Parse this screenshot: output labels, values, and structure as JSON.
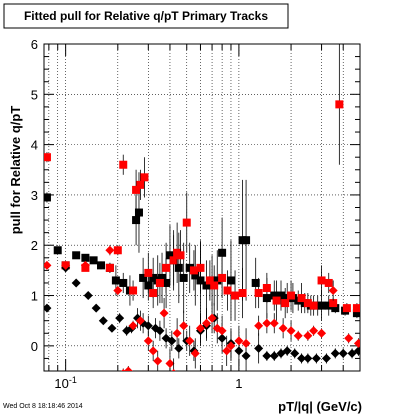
{
  "chart_data": {
    "type": "scatter",
    "title": "Fitted pull for Relative q/pT  Primary Tracks",
    "xlabel": "pT/|q| (GeV/c)",
    "ylabel": "pull for Relative q/pT",
    "x_scale": "log",
    "xlim": [
      0.075,
      5.0
    ],
    "ylim": [
      -0.5,
      6.0
    ],
    "x_tick_labels": [
      "10^-1",
      "1"
    ],
    "y_tick_labels": [
      "0",
      "1",
      "2",
      "3",
      "4",
      "5",
      "6"
    ],
    "grid": true,
    "timestamp": "Wed Oct  8 18:18:46 2014",
    "colors": {
      "black": "#000000",
      "red": "#ff0000"
    },
    "series": [
      {
        "color": "black",
        "marker": "square",
        "x": [
          0.078,
          0.09,
          0.1,
          0.115,
          0.13,
          0.145,
          0.16,
          0.18,
          0.195,
          0.215,
          0.235,
          0.255,
          0.265,
          0.28,
          0.3,
          0.32,
          0.34,
          0.36,
          0.38,
          0.4,
          0.42,
          0.45,
          0.48,
          0.52,
          0.56,
          0.6,
          0.65,
          0.7,
          0.75,
          0.8,
          0.9,
          1.05,
          1.1,
          1.25,
          1.45,
          1.6,
          1.75,
          1.9,
          2.05,
          2.2,
          2.4,
          2.6,
          2.85,
          3.0,
          3.3,
          3.6,
          4.1,
          4.8
        ],
        "y": [
          2.95,
          1.9,
          1.6,
          1.8,
          1.75,
          1.7,
          1.6,
          1.55,
          1.3,
          1.25,
          1.1,
          2.5,
          2.65,
          1.35,
          1.2,
          1.35,
          1.3,
          1.35,
          1.25,
          1.8,
          1.7,
          1.55,
          1.35,
          1.55,
          1.4,
          1.3,
          1.2,
          1.3,
          1.3,
          1.85,
          1.3,
          2.1,
          2.1,
          1.25,
          0.95,
          1.0,
          1.0,
          0.95,
          0.95,
          0.9,
          0.85,
          0.8,
          0.8,
          0.8,
          0.8,
          0.75,
          0.7,
          0.65
        ],
        "err": [
          0.1,
          0.05,
          0.05,
          0.05,
          0.05,
          0.05,
          0.08,
          0.1,
          0.3,
          0.2,
          0.3,
          0.5,
          0.8,
          0.4,
          0.3,
          0.4,
          0.5,
          0.5,
          0.5,
          0.6,
          0.6,
          0.7,
          0.7,
          0.5,
          0.6,
          0.8,
          0.5,
          0.5,
          0.6,
          0.7,
          0.8,
          1.2,
          1.2,
          0.5,
          0.4,
          0.3,
          0.3,
          0.3,
          0.3,
          0.2,
          0.2,
          0.2,
          0.2,
          0.3,
          0.2,
          0.1,
          0.1,
          0.1
        ]
      },
      {
        "color": "red",
        "marker": "square",
        "x": [
          0.078,
          0.1,
          0.13,
          0.18,
          0.2,
          0.215,
          0.245,
          0.255,
          0.27,
          0.285,
          0.3,
          0.32,
          0.35,
          0.38,
          0.42,
          0.44,
          0.46,
          0.5,
          0.55,
          0.6,
          0.68,
          0.72,
          0.8,
          0.86,
          0.95,
          1.05,
          1.3,
          1.45,
          1.65,
          1.85,
          2.0,
          2.3,
          2.5,
          2.7,
          3.0,
          3.3,
          3.5,
          3.8,
          4.2,
          4.8
        ],
        "y": [
          3.75,
          1.6,
          1.55,
          1.55,
          1.9,
          3.6,
          1.1,
          3.1,
          3.2,
          3.35,
          1.45,
          1.05,
          1.25,
          1.55,
          1.7,
          1.85,
          1.8,
          2.45,
          1.5,
          1.55,
          1.3,
          1.2,
          1.35,
          1.1,
          1.0,
          1.05,
          1.05,
          1.15,
          0.9,
          0.85,
          1.0,
          0.95,
          0.85,
          0.8,
          1.3,
          1.25,
          0.85,
          4.8,
          0.75,
          0.75
        ],
        "err": [
          0.1,
          0.05,
          0.05,
          0.1,
          0.1,
          0.2,
          0.2,
          0.4,
          0.3,
          0.4,
          0.4,
          0.3,
          0.4,
          0.5,
          0.5,
          0.6,
          0.5,
          0.6,
          0.4,
          0.5,
          0.4,
          0.4,
          0.4,
          0.4,
          0.5,
          0.5,
          0.3,
          0.3,
          0.4,
          0.3,
          0.3,
          0.3,
          0.2,
          0.2,
          0.3,
          0.2,
          0.1,
          1.2,
          0.1,
          0.1
        ]
      },
      {
        "color": "black",
        "marker": "diamond",
        "x": [
          0.078,
          0.1,
          0.115,
          0.135,
          0.15,
          0.165,
          0.185,
          0.205,
          0.225,
          0.24,
          0.26,
          0.28,
          0.3,
          0.33,
          0.35,
          0.38,
          0.41,
          0.45,
          0.5,
          0.55,
          0.6,
          0.65,
          0.72,
          0.8,
          0.9,
          1.0,
          1.1,
          1.3,
          1.45,
          1.6,
          1.75,
          1.9,
          2.1,
          2.3,
          2.5,
          2.8,
          3.2,
          3.6,
          4.0,
          4.5,
          4.9
        ],
        "y": [
          0.75,
          1.55,
          1.25,
          1.0,
          0.75,
          0.5,
          0.35,
          0.55,
          0.3,
          0.35,
          0.55,
          0.45,
          0.4,
          0.35,
          0.3,
          0.15,
          0.1,
          -0.05,
          0.1,
          -0.1,
          0.3,
          0.4,
          0.55,
          0.15,
          0.05,
          -0.1,
          -0.2,
          -0.05,
          -0.2,
          -0.2,
          -0.15,
          -0.1,
          -0.15,
          -0.25,
          -0.25,
          -0.25,
          -0.25,
          -0.15,
          -0.15,
          -0.15,
          -0.1
        ],
        "err": [
          0.05,
          0.05,
          0.05,
          0.05,
          0.05,
          0.05,
          0.05,
          0.1,
          0.1,
          0.1,
          0.2,
          0.2,
          0.2,
          0.2,
          0.2,
          0.2,
          0.2,
          0.2,
          0.2,
          0.2,
          0.3,
          0.3,
          0.3,
          0.3,
          0.3,
          0.3,
          0.3,
          0.3,
          0.1,
          0.1,
          0.1,
          0.1,
          0.1,
          0.1,
          0.1,
          0.1,
          0.1,
          0.1,
          0.1,
          0.1,
          0.1
        ]
      },
      {
        "color": "red",
        "marker": "diamond",
        "x": [
          0.078,
          0.1,
          0.13,
          0.18,
          0.2,
          0.215,
          0.23,
          0.245,
          0.27,
          0.3,
          0.32,
          0.34,
          0.37,
          0.4,
          0.42,
          0.44,
          0.48,
          0.52,
          0.56,
          0.6,
          0.65,
          0.7,
          0.75,
          0.8,
          0.85,
          0.9,
          1.0,
          1.1,
          1.3,
          1.45,
          1.6,
          1.8,
          2.0,
          2.2,
          2.5,
          2.7,
          3.0,
          3.5,
          4.3,
          4.9
        ],
        "y": [
          1.6,
          1.6,
          1.6,
          1.9,
          1.1,
          -0.55,
          -0.5,
          0.4,
          0.5,
          0.1,
          -0.1,
          -0.3,
          0.65,
          -0.35,
          -0.55,
          0.25,
          0.4,
          0.1,
          -0.15,
          0.35,
          0.45,
          0.55,
          0.35,
          0.3,
          -0.1,
          0.0,
          0.1,
          0.05,
          0.4,
          0.45,
          0.45,
          0.35,
          0.3,
          0.2,
          0.2,
          0.3,
          0.25,
          1.1,
          0.15,
          0.05
        ],
        "err": [
          0.05,
          0.05,
          0.05,
          0.1,
          0.1,
          0.1,
          0.1,
          0.1,
          0.2,
          0.2,
          0.2,
          0.2,
          0.3,
          0.3,
          0.3,
          0.3,
          0.3,
          0.3,
          0.3,
          0.3,
          0.3,
          0.3,
          0.3,
          0.3,
          0.3,
          0.3,
          0.3,
          0.3,
          0.2,
          0.2,
          0.2,
          0.2,
          0.2,
          0.1,
          0.1,
          0.1,
          0.1,
          0.2,
          0.1,
          0.1
        ]
      }
    ]
  }
}
